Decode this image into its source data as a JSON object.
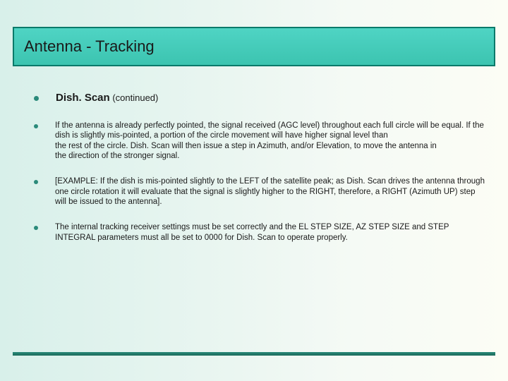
{
  "title": "Antenna - Tracking",
  "bullets": [
    {
      "main_term": "Dish. Scan",
      "continued": "  (continued)"
    },
    {
      "text": "If the antenna is already perfectly pointed, the signal received (AGC level) throughout each full circle will be equal. If the dish is slightly mis-pointed, a portion of the circle movement will have higher signal level than\nthe rest of the circle. Dish. Scan will then issue a step in Azimuth, and/or Elevation, to move the antenna in\nthe direction of the stronger signal."
    },
    {
      "text": "[EXAMPLE:   If the dish is mis-pointed slightly to the LEFT of the satellite peak; as Dish. Scan drives the antenna through one circle rotation it will evaluate that the signal is slightly higher to the RIGHT, therefore, a RIGHT (Azimuth UP) step will be issued to the antenna]."
    },
    {
      "text": "The internal tracking receiver settings must be set correctly and the EL STEP SIZE, AZ STEP SIZE and STEP INTEGRAL parameters must all be set to 0000 for Dish. Scan to operate properly."
    }
  ],
  "styling": {
    "slide_width": 720,
    "slide_height": 540,
    "background_gradient": [
      "#d8f0ea",
      "#e8f5f0",
      "#f5faf5",
      "#fcfdf5"
    ],
    "title_bar_bg": [
      "#4fd4c4",
      "#3cc4b0"
    ],
    "title_bar_border": "#0a7a6a",
    "title_fontsize": 22,
    "title_color": "#1a1a1a",
    "bullet_color": "#2a8a7a",
    "bullet_dot_size": 6,
    "body_fontsize": 11.5,
    "first_bullet_fontsize": 15,
    "text_color": "#1a1a1a",
    "footer_line_color": [
      "#2a8a7a",
      "#1a6a5a"
    ],
    "font_family": "Arial"
  }
}
